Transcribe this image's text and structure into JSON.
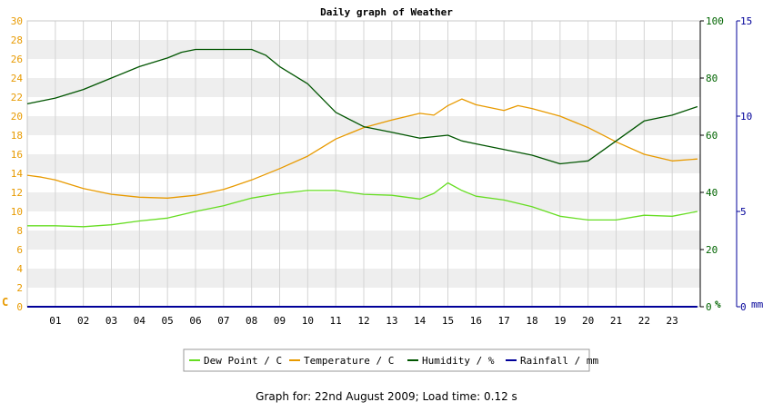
{
  "chart_data": {
    "type": "line",
    "title": "Daily graph of Weather",
    "x_hours": [
      "01",
      "02",
      "03",
      "04",
      "05",
      "06",
      "07",
      "08",
      "09",
      "10",
      "11",
      "12",
      "13",
      "14",
      "15",
      "16",
      "17",
      "18",
      "19",
      "20",
      "21",
      "22",
      "23"
    ],
    "xlim": [
      0,
      24
    ],
    "y_left": {
      "unit": "C",
      "lim": [
        0,
        30
      ],
      "ticks": [
        0,
        2,
        4,
        6,
        8,
        10,
        12,
        14,
        16,
        18,
        20,
        22,
        24,
        26,
        28,
        30
      ],
      "color": "#e89a00"
    },
    "y_right1": {
      "unit": "%",
      "lim": [
        0,
        100
      ],
      "ticks": [
        0,
        20,
        40,
        60,
        80,
        100
      ],
      "color": "#006400"
    },
    "y_right2": {
      "unit": "mm",
      "lim": [
        0,
        15
      ],
      "ticks": [
        0,
        5,
        10,
        15
      ],
      "color": "#000099"
    },
    "grid": true,
    "legend_position": "bottom",
    "series": [
      {
        "name": "Dew Point / C",
        "axis": "left",
        "color": "#66dd22",
        "x": [
          0,
          1,
          2,
          3,
          4,
          5,
          6,
          7,
          8,
          9,
          10,
          11,
          12,
          13,
          14,
          14.5,
          15,
          15.5,
          16,
          17,
          18,
          19,
          20,
          21,
          22,
          23,
          23.9
        ],
        "y": [
          8.5,
          8.5,
          8.4,
          8.6,
          9.0,
          9.3,
          10.0,
          10.6,
          11.4,
          11.9,
          12.2,
          12.2,
          11.8,
          11.7,
          11.3,
          11.9,
          13.0,
          12.2,
          11.6,
          11.2,
          10.5,
          9.5,
          9.1,
          9.1,
          9.6,
          9.5,
          10.0
        ]
      },
      {
        "name": "Temperature / C",
        "axis": "left",
        "color": "#e89a00",
        "x": [
          0,
          0.5,
          1,
          2,
          3,
          4,
          5,
          6,
          7,
          8,
          9,
          10,
          11,
          12,
          13,
          14,
          14.5,
          15,
          15.5,
          16,
          17,
          17.5,
          18,
          19,
          20,
          21,
          22,
          23,
          23.9
        ],
        "y": [
          13.8,
          13.6,
          13.3,
          12.4,
          11.8,
          11.5,
          11.4,
          11.7,
          12.3,
          13.3,
          14.5,
          15.8,
          17.6,
          18.8,
          19.6,
          20.3,
          20.1,
          21.1,
          21.8,
          21.2,
          20.6,
          21.1,
          20.8,
          20.0,
          18.8,
          17.3,
          16.0,
          15.3,
          15.5
        ]
      },
      {
        "name": "Humidity / %",
        "axis": "right1",
        "color": "#005500",
        "x": [
          0,
          1,
          2,
          3,
          4,
          5,
          5.5,
          6,
          7,
          8,
          8.5,
          9,
          10,
          11,
          12,
          13,
          14,
          15,
          15.5,
          16,
          17,
          18,
          19,
          20,
          21,
          22,
          23,
          23.9
        ],
        "y": [
          71,
          73,
          76,
          80,
          84,
          87,
          89,
          90,
          90,
          90,
          88,
          84,
          78,
          68,
          63,
          61,
          59,
          60,
          58,
          57,
          55,
          53,
          50,
          51,
          58,
          65,
          67,
          70
        ]
      },
      {
        "name": "Rainfall / mm",
        "axis": "right2",
        "color": "#000099",
        "x": [
          0,
          23.9
        ],
        "y": [
          0,
          0
        ]
      }
    ],
    "footer": "Graph for: 22nd August 2009; Load time: 0.12 s"
  }
}
